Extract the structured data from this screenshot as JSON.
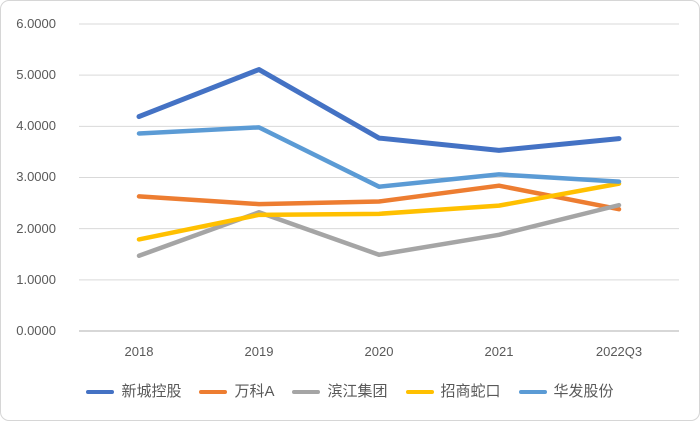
{
  "chart_data": {
    "type": "line",
    "categories": [
      "2018",
      "2019",
      "2020",
      "2021",
      "2022Q3"
    ],
    "series": [
      {
        "name": "新城控股",
        "color": "#4472C4",
        "values": [
          4.19,
          5.11,
          3.77,
          3.53,
          3.76
        ]
      },
      {
        "name": "万科A",
        "color": "#ED7D31",
        "values": [
          2.63,
          2.48,
          2.53,
          2.84,
          2.38
        ]
      },
      {
        "name": "滨江集团",
        "color": "#A5A5A5",
        "values": [
          1.47,
          2.32,
          1.49,
          1.88,
          2.46
        ]
      },
      {
        "name": "招商蛇口",
        "color": "#FFC000",
        "values": [
          1.79,
          2.27,
          2.29,
          2.45,
          2.88
        ]
      },
      {
        "name": "华发股份",
        "color": "#5B9BD5",
        "values": [
          3.86,
          3.98,
          2.82,
          3.06,
          2.92
        ]
      }
    ],
    "title": "",
    "xlabel": "",
    "ylabel": "",
    "ylim": [
      0,
      6
    ],
    "y_tick_labels": [
      "0.0000",
      "1.0000",
      "2.0000",
      "3.0000",
      "4.0000",
      "5.0000",
      "6.0000"
    ],
    "grid": true,
    "legend_position": "bottom"
  },
  "style_colors": {
    "gridline": "#d9d9d9",
    "axis_line": "#bfbfbf",
    "axis_text": "#595959",
    "frame_border": "#d6d6d6",
    "background": "#ffffff"
  }
}
